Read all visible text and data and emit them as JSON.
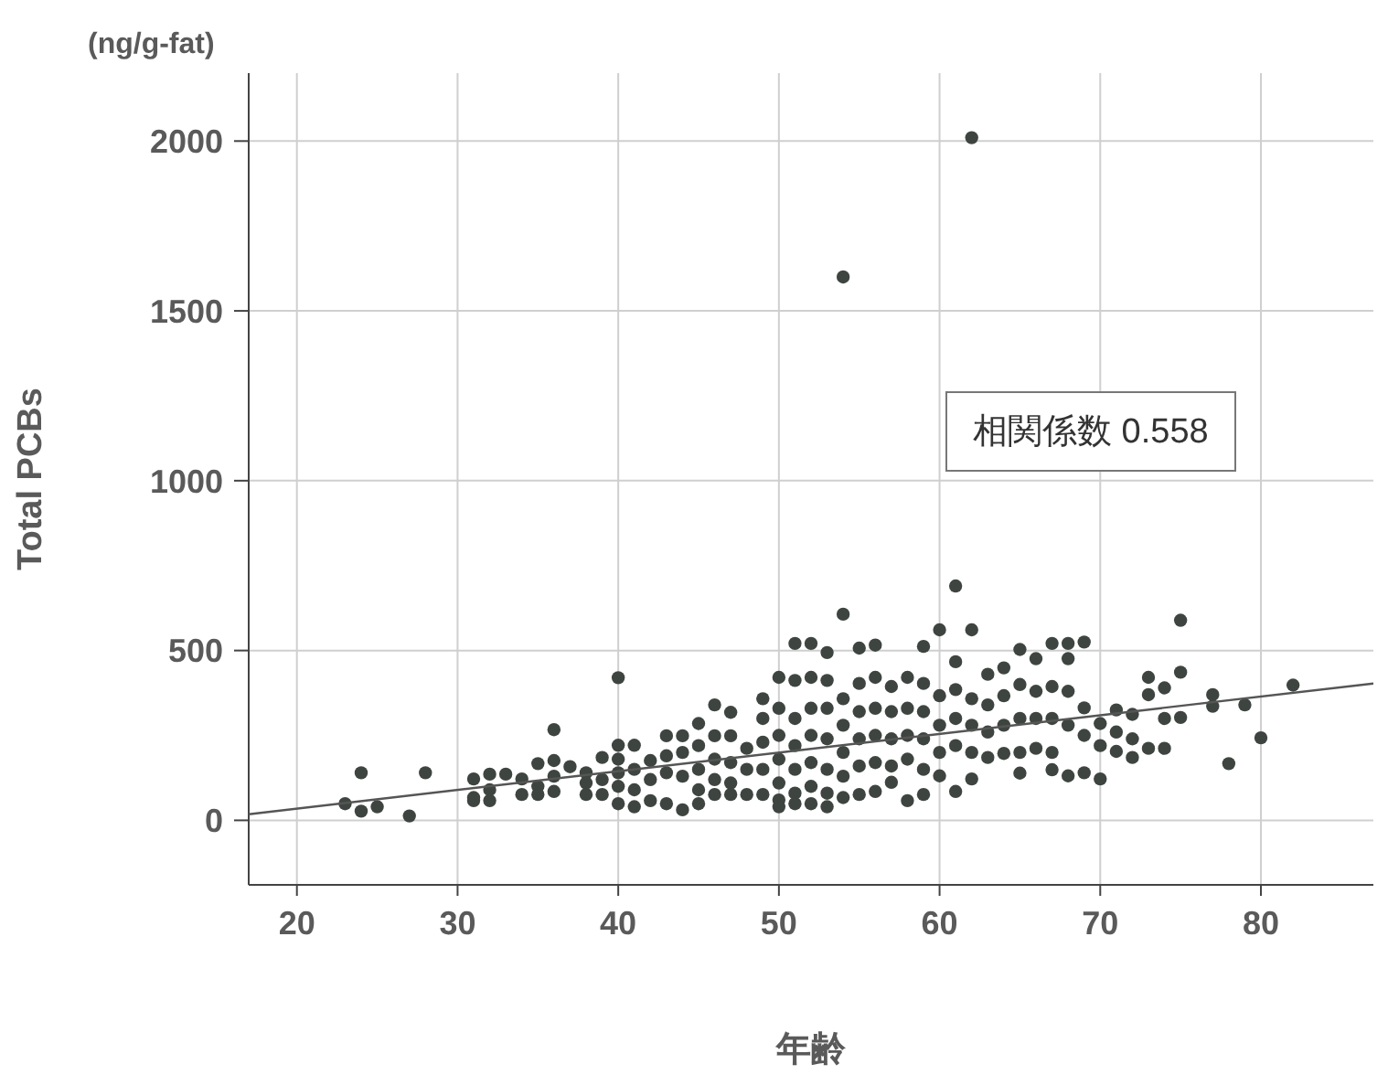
{
  "chart_data": {
    "type": "scatter",
    "xlabel": "年齢",
    "ylabel": "Total PCBs",
    "annotations": [
      "(ng/g-fat)",
      "相関係数 0.558"
    ],
    "xlim": [
      17,
      87
    ],
    "xticks": [
      20,
      30,
      40,
      50,
      60,
      70,
      80
    ],
    "ylim": [
      -190,
      2200
    ],
    "yticks": [
      0,
      500,
      1000,
      1500,
      2000
    ],
    "grid": true,
    "marker": "circle",
    "series": [
      {
        "color": "#3e4540",
        "x": [
          23,
          24,
          24,
          25,
          27,
          28,
          31,
          31,
          31,
          32,
          32,
          32,
          33,
          34,
          34,
          35,
          35,
          35,
          36,
          36,
          36,
          36,
          37,
          38,
          38,
          38,
          39,
          39,
          39,
          40,
          40,
          40,
          40,
          40,
          40,
          41,
          41,
          41,
          41,
          42,
          42,
          42,
          43,
          43,
          43,
          43,
          44,
          44,
          44,
          44,
          45,
          45,
          45,
          45,
          45,
          46,
          46,
          46,
          46,
          46,
          47,
          47,
          47,
          47,
          47,
          48,
          48,
          48,
          49,
          49,
          49,
          49,
          49,
          50,
          50,
          50,
          50,
          50,
          50,
          50,
          51,
          51,
          51,
          51,
          51,
          51,
          51,
          52,
          52,
          52,
          52,
          52,
          52,
          52,
          53,
          53,
          53,
          53,
          53,
          53,
          53,
          54,
          54,
          54,
          54,
          54,
          54,
          54,
          55,
          55,
          55,
          55,
          55,
          55,
          56,
          56,
          56,
          56,
          56,
          56,
          57,
          57,
          57,
          57,
          57,
          58,
          58,
          58,
          58,
          58,
          59,
          59,
          59,
          59,
          59,
          59,
          60,
          60,
          60,
          60,
          60,
          61,
          61,
          61,
          61,
          61,
          61,
          62,
          62,
          62,
          62,
          62,
          62,
          63,
          63,
          63,
          63,
          64,
          64,
          64,
          64,
          65,
          65,
          65,
          65,
          65,
          66,
          66,
          66,
          66,
          67,
          67,
          67,
          67,
          67,
          68,
          68,
          68,
          68,
          68,
          69,
          69,
          69,
          69,
          70,
          70,
          70,
          71,
          71,
          71,
          72,
          72,
          72,
          73,
          73,
          73,
          74,
          74,
          74,
          75,
          75,
          75,
          77,
          77,
          78,
          79,
          80,
          82
        ],
        "values": [
          49,
          140,
          27,
          40,
          13,
          140,
          122,
          67,
          58,
          136,
          58,
          90,
          136,
          122,
          76,
          167,
          100,
          76,
          267,
          176,
          85,
          130,
          158,
          140,
          76,
          110,
          185,
          76,
          120,
          420,
          221,
          180,
          140,
          100,
          49,
          221,
          150,
          90,
          40,
          176,
          120,
          58,
          249,
          190,
          140,
          49,
          249,
          200,
          130,
          31,
          285,
          220,
          150,
          90,
          49,
          340,
          249,
          180,
          120,
          76,
          318,
          249,
          170,
          110,
          76,
          212,
          150,
          76,
          358,
          300,
          230,
          150,
          76,
          421,
          330,
          250,
          180,
          110,
          60,
          40,
          521,
          412,
          300,
          220,
          150,
          80,
          49,
          521,
          421,
          330,
          250,
          170,
          100,
          49,
          494,
          412,
          330,
          240,
          150,
          80,
          40,
          607,
          358,
          280,
          200,
          130,
          67,
          1600,
          507,
          403,
          320,
          240,
          160,
          76,
          516,
          421,
          330,
          250,
          170,
          85,
          394,
          320,
          240,
          160,
          112,
          421,
          330,
          250,
          180,
          58,
          512,
          403,
          320,
          240,
          150,
          76,
          561,
          367,
          280,
          200,
          131,
          690,
          467,
          385,
          300,
          220,
          85,
          561,
          358,
          280,
          200,
          122,
          2010,
          430,
          340,
          260,
          185,
          449,
          367,
          280,
          197,
          503,
          400,
          300,
          200,
          139,
          476,
          380,
          300,
          212,
          521,
          394,
          300,
          200,
          149,
          521,
          476,
          380,
          280,
          131,
          525,
          331,
          250,
          140,
          285,
          220,
          122,
          325,
          260,
          203,
          312,
          240,
          185,
          421,
          370,
          212,
          390,
          300,
          212,
          589,
          436,
          303,
          370,
          336,
          167,
          340,
          243,
          398
        ]
      },
      {
        "type": "line",
        "marker": "none",
        "color": "#555555",
        "x": [
          17,
          87
        ],
        "values": [
          18,
          403
        ]
      }
    ]
  }
}
